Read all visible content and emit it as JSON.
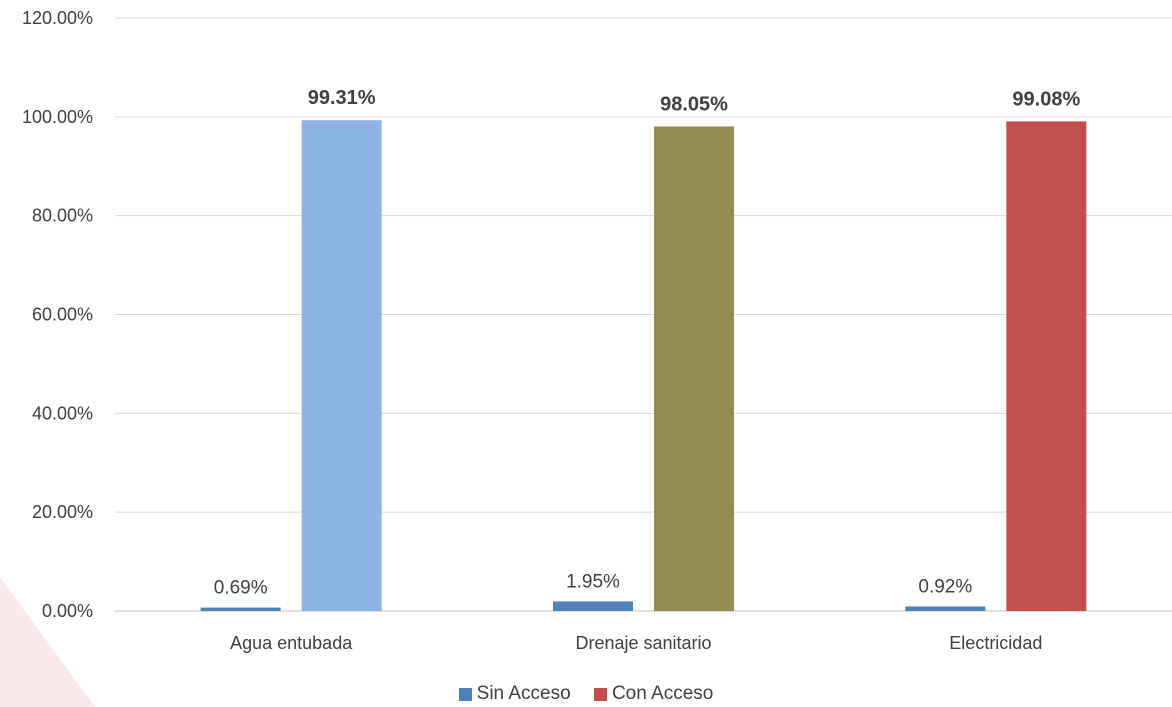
{
  "chart_data": {
    "type": "bar",
    "categories": [
      "Agua entubada",
      "Drenaje sanitario",
      "Electricidad"
    ],
    "series": [
      {
        "name": "Sin Acceso",
        "values": [
          0.69,
          1.95,
          0.92
        ],
        "labels": [
          "0.69%",
          "1.95%",
          "0.92%"
        ],
        "color": "#4f81bd"
      },
      {
        "name": "Con Acceso",
        "values": [
          99.31,
          98.05,
          99.08
        ],
        "labels": [
          "99.31%",
          "98.05%",
          "99.08%"
        ],
        "colors": [
          "#8db3e2",
          "#948a54",
          "#c0504d"
        ]
      }
    ],
    "y_ticks": [
      "0.00%",
      "20.00%",
      "40.00%",
      "60.00%",
      "80.00%",
      "100.00%",
      "120.00%"
    ],
    "ylim": [
      0,
      120
    ],
    "grid": true,
    "legend_position": "bottom",
    "legend": [
      {
        "label": "Sin Acceso",
        "color": "#4f81bd"
      },
      {
        "label": "Con Acceso",
        "color": "#c0504d"
      }
    ]
  }
}
